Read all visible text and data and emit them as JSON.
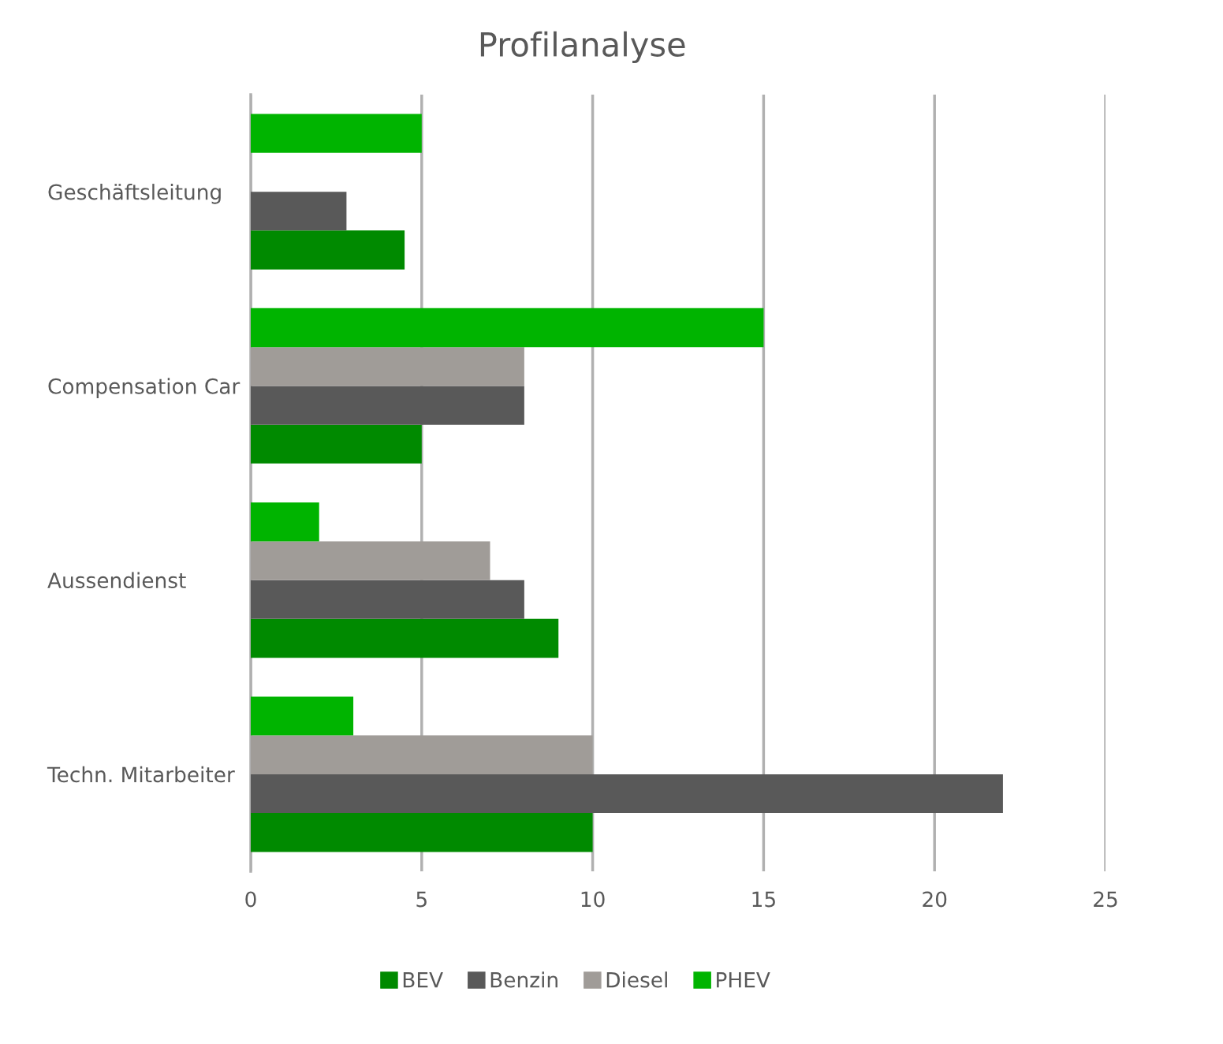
{
  "chart_data": {
    "type": "bar",
    "orientation": "horizontal",
    "title": "Profilanalyse",
    "categories": [
      "Geschäftsleitung",
      "Compensation Car",
      "Aussendienst",
      "Techn. Mitarbeiter"
    ],
    "series": [
      {
        "name": "BEV",
        "color": "#008a00",
        "values": [
          4.5,
          5,
          9,
          10
        ]
      },
      {
        "name": "Benzin",
        "color": "#595959",
        "values": [
          2.8,
          8,
          8,
          22
        ]
      },
      {
        "name": "Diesel",
        "color": "#a09c98",
        "values": [
          null,
          8,
          7,
          10
        ]
      },
      {
        "name": "PHEV",
        "color": "#00b400",
        "values": [
          5,
          15,
          2,
          3
        ]
      }
    ],
    "xlim": [
      0,
      25
    ],
    "xticks": [
      0,
      5,
      10,
      15,
      20,
      25
    ],
    "grid": "x",
    "legend": "bottom"
  }
}
